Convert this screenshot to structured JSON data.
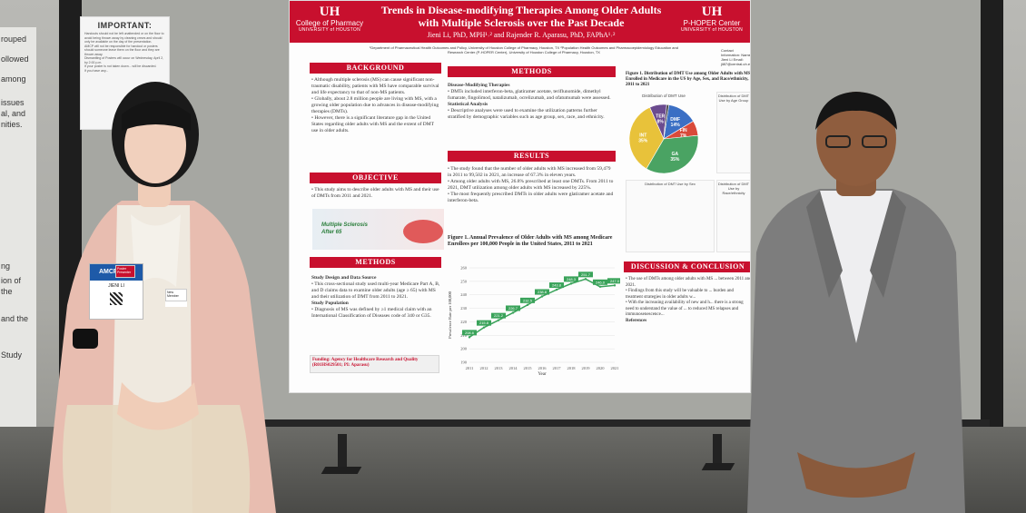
{
  "scene": {
    "left_notice": {
      "title": "IMPORTANT:",
      "lines": [
        "Handouts should not be left unattended or on the floor to avoid being thrown away by cleaning crews and should only be available on the day of the presentation.",
        "AMCP will not be responsible for handout or posters should someone leave them on the floor and they are thrown away.",
        "Dismantling of Posters will occur on Wednesday, April 2, by 2:00 p.m.",
        "If your poster is not taken down... will be discarded.",
        "If you have any..."
      ]
    },
    "edge_poster_fragments": [
      "rouped",
      "ollowed",
      "among",
      "issues",
      "al, and",
      "nities.",
      "ng",
      "ion of",
      "the",
      "and the",
      "Study"
    ],
    "right_edge_fragments": []
  },
  "poster": {
    "left_logo": {
      "mark": "UH",
      "line1": "College of Pharmacy",
      "line2": "UNIVERSITY of HOUSTON"
    },
    "right_logo": {
      "mark": "UH",
      "line1": "P-HOPER Center",
      "line2": "UNIVERSITY of HOUSTON"
    },
    "title": "Trends in Disease-modifying Therapies Among Older Adults with Multiple Sclerosis over the Past Decade",
    "authors": "Jieni Li, PhD, MPH¹˒² and Rajender R. Aparasu, PhD, FAPhA¹˒²",
    "affiliations": "¹Department of Pharmaceutical Health Outcomes and Policy, University of Houston College of Pharmacy, Houston, TX  ²Population Health Outcomes and Pharmacoepidemiology Education and Research Center (P-HOPER Center), University of Houston College of Pharmacy, Houston, TX",
    "contact": "Contact Information: Name: Jieni Li  Email: jli87@central.uh.edu",
    "sections": {
      "background": {
        "heading": "BACKGROUND",
        "bullets": [
          "Although multiple sclerosis (MS) can cause significant non-traumatic disability, patients with MS have comparable survival and life expectancy to that of non-MS patients.",
          "Globally, about 2.8 million people are living with MS, with a growing older population due to advances in disease-modifying therapies (DMTs).",
          "However, there is a significant literature gap in the United States regarding older adults with MS and the extent of DMT use in older adults."
        ]
      },
      "objective": {
        "heading": "OBJECTIVE",
        "bullets": [
          "This study aims to describe older adults with MS and their use of DMTs from 2011 and 2021."
        ],
        "image_caption_line1": "Multiple Sclerosis",
        "image_caption_line2": "After 65"
      },
      "methods_left": {
        "heading": "METHODS",
        "sub1": "Study Design and Data Source",
        "sub1_bullets": [
          "This cross-sectional study used multi-year Medicare Part A, B, and D claims data to examine older adults (age ≥ 65) with MS and their utilization of DMT from 2011 to 2021."
        ],
        "sub2": "Study Population",
        "sub2_bullets": [
          "Diagnosis of MS was defined by ≥1 medical claim with an International Classification of Diseases code of 340 or G35."
        ],
        "funding": "Funding: Agency for Healthcare Research and Quality (R01HS029501; PI: Aparasu)"
      },
      "methods_right": {
        "heading": "METHODS",
        "sub1": "Disease-Modifying Therapies",
        "sub1_bullets": [
          "DMTs included interferon-beta, glatiramer acetate, teriflunomide, dimethyl fumarate, fingolimod, natalizumab, ocrelizumab, and ofatumumab were assessed."
        ],
        "sub2": "Statistical Analysis",
        "sub2_bullets": [
          "Descriptive analyses were used to examine the utilization patterns further stratified by demographic variables such as age group, sex, race, and ethnicity."
        ]
      },
      "results": {
        "heading": "RESULTS",
        "bullets": [
          "The study found that the number of older adults with MS increased from 59,479 in 2011 to 99,502 in 2021, an increase of 67.3% in eleven years.",
          "Among older adults with MS, 26.8% prescribed at least one DMTs. From 2011 to 2021, DMT utilization among older adults with MS increased by 225%.",
          "The most frequently prescribed DMTs in older adults were glatiramer acetate and interferon-beta."
        ],
        "figure_caption": "Figure 1. Annual Prevalence of Older Adults with MS among Medicare Enrollees per 100,000 People in the United States, 2011 to 2021"
      },
      "right_figure": {
        "caption": "Figure 1. Distribution of DMT Use among Older Adults with MS Enrolled in Medicare in the US by Age, Sex, and Race/ethnicity, 2011 to 2021",
        "mini_titles": [
          "Distribution of DMT Use",
          "Distribution of DMT Use by Age Group",
          "Distribution of DMT Use by Sex",
          "Distribution of DMT Use by Race/ethnicity"
        ]
      },
      "discussion": {
        "heading": "DISCUSSION & CONCLUSION",
        "bullets": [
          "The use of DMTs among older adults with MS ... between 2011 and 2021.",
          "Findings from this study will be valuable to ... burden and treatment strategies in older adults w...",
          "With the increasing availability of new and h... there is a strong need to understand the value of ... to reduced MS relapses and immunosenescence..."
        ],
        "references_label": "References"
      }
    },
    "chart_data": [
      {
        "type": "line",
        "title": "",
        "xlabel": "Year",
        "ylabel": "Prevalence Rate per 100,000",
        "x": [
          2011,
          2012,
          2013,
          2014,
          2015,
          2016,
          2017,
          2018,
          2019,
          2020,
          2021
        ],
        "series": [
          {
            "name": "",
            "values": [
              208.6,
              215.8,
              221.2,
              226.7,
              232.5,
              238.8,
              243.8,
              248.3,
              251.7,
              246.0,
              247.0
            ]
          }
        ],
        "data_labels": [
          "208.6",
          "215.8",
          "221.2",
          "226.7",
          "232.5",
          "238.8",
          "243.8",
          "248.3",
          "251.7",
          "246.0",
          "247.0"
        ],
        "y_ticks": [
          190,
          200,
          210,
          220,
          230,
          240,
          250,
          260
        ],
        "ylim": [
          190,
          260
        ],
        "grid": true
      },
      {
        "type": "pie",
        "title": "Distribution of DMT Use",
        "categories": [
          "DMF",
          "FIN",
          "GA",
          "INT",
          "TER",
          "Other"
        ],
        "values": [
          14,
          7,
          35,
          35,
          8,
          1
        ],
        "labels": [
          "DMF 14%",
          "FIN 7%",
          "GA 35%",
          "INT 35%",
          "TER 8%",
          ""
        ],
        "colors": {
          "DMF": "#3b6fc4",
          "FIN": "#d94a3a",
          "GA": "#4aa363",
          "INT": "#e8c23a",
          "TER": "#6b4b8f",
          "Other": "#333333"
        }
      }
    ]
  },
  "people": {
    "left_badge": {
      "top": "AMCP 2025",
      "name": "JIENI LI"
    },
    "left_tag1": "Poster Presenter",
    "left_tag2": "New Member"
  }
}
